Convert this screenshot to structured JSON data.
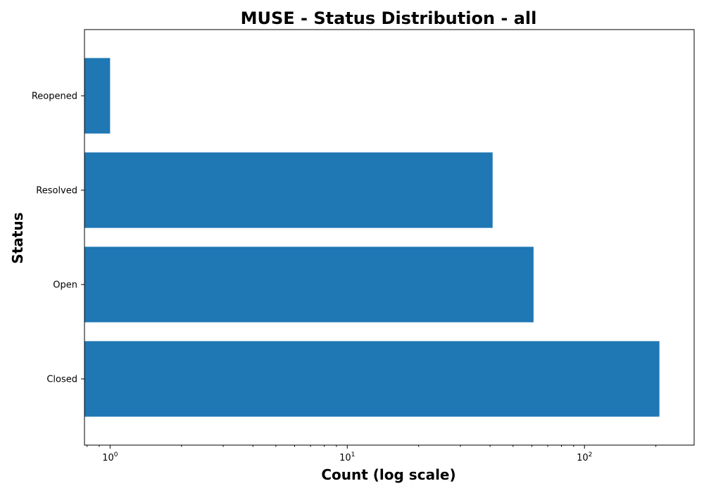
{
  "chart_data": {
    "type": "bar",
    "orientation": "horizontal",
    "title": "MUSE - Status Distribution - all",
    "xlabel": "Count (log scale)",
    "ylabel": "Status",
    "x_scale": "log",
    "xlim": [
      0.78,
      290
    ],
    "grid": false,
    "legend": "none",
    "categories": [
      "Reopened",
      "Resolved",
      "Open",
      "Closed"
    ],
    "values": [
      1,
      41,
      61,
      207
    ],
    "x_ticks": [
      {
        "base": "10",
        "exp": "0",
        "value": 1
      },
      {
        "base": "10",
        "exp": "1",
        "value": 10
      },
      {
        "base": "10",
        "exp": "2",
        "value": 100
      }
    ],
    "bar_color": "#1f77b4"
  }
}
